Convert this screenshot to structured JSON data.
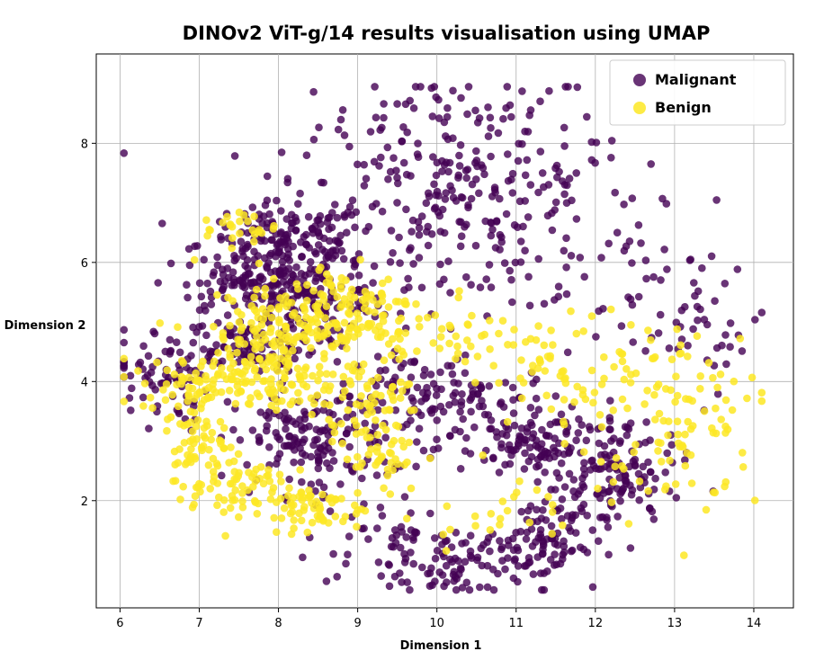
{
  "chart_data": {
    "type": "scatter",
    "title": "DINOv2 ViT-g/14 results visualisation using UMAP",
    "xlabel": "Dimension 1",
    "ylabel": "Dimension 2",
    "xlim": [
      5.7,
      14.5
    ],
    "ylim": [
      0.2,
      9.5
    ],
    "xticks": [
      6,
      7,
      8,
      9,
      10,
      11,
      12,
      13,
      14
    ],
    "yticks": [
      2,
      4,
      6,
      8
    ],
    "grid": true,
    "legend_position": "top-right",
    "series": [
      {
        "name": "Malignant",
        "color": "#440154",
        "opacity": 0.8,
        "clusters": [
          {
            "cx": 10.3,
            "cy": 8.3,
            "sx": 0.9,
            "sy": 0.45,
            "n": 80
          },
          {
            "cx": 10.2,
            "cy": 7.2,
            "sx": 1.2,
            "sy": 0.55,
            "n": 150
          },
          {
            "cx": 10.6,
            "cy": 6.2,
            "sx": 1.1,
            "sy": 0.5,
            "n": 90
          },
          {
            "cx": 8.1,
            "cy": 6.3,
            "sx": 0.55,
            "sy": 0.35,
            "n": 170
          },
          {
            "cx": 8.3,
            "cy": 5.4,
            "sx": 0.55,
            "sy": 0.3,
            "n": 150
          },
          {
            "cx": 7.5,
            "cy": 5.6,
            "sx": 0.35,
            "sy": 0.25,
            "n": 50
          },
          {
            "cx": 7.6,
            "cy": 4.6,
            "sx": 0.45,
            "sy": 0.22,
            "n": 90
          },
          {
            "cx": 6.5,
            "cy": 4.1,
            "sx": 0.3,
            "sy": 0.4,
            "n": 70
          },
          {
            "cx": 8.4,
            "cy": 3.0,
            "sx": 0.5,
            "sy": 0.45,
            "n": 150
          },
          {
            "cx": 9.6,
            "cy": 3.7,
            "sx": 0.5,
            "sy": 0.4,
            "n": 60
          },
          {
            "cx": 10.5,
            "cy": 3.6,
            "sx": 0.6,
            "sy": 0.35,
            "n": 90
          },
          {
            "cx": 11.5,
            "cy": 2.9,
            "sx": 0.6,
            "sy": 0.3,
            "n": 130
          },
          {
            "cx": 12.3,
            "cy": 2.3,
            "sx": 0.4,
            "sy": 0.35,
            "n": 60
          },
          {
            "cx": 10.2,
            "cy": 1.0,
            "sx": 0.6,
            "sy": 0.3,
            "n": 100
          },
          {
            "cx": 11.3,
            "cy": 1.3,
            "sx": 0.4,
            "sy": 0.35,
            "n": 80
          },
          {
            "cx": 11.9,
            "cy": 2.0,
            "sx": 0.3,
            "sy": 0.3,
            "n": 40
          },
          {
            "cx": 12.8,
            "cy": 5.2,
            "sx": 0.7,
            "sy": 0.5,
            "n": 45
          },
          {
            "cx": 13.6,
            "cy": 4.6,
            "sx": 0.4,
            "sy": 0.5,
            "n": 14
          },
          {
            "cx": 9.3,
            "cy": 1.5,
            "sx": 0.3,
            "sy": 0.3,
            "n": 25
          }
        ]
      },
      {
        "name": "Benign",
        "color": "#fde725",
        "opacity": 0.85,
        "clusters": [
          {
            "cx": 7.5,
            "cy": 6.6,
            "sx": 0.25,
            "sy": 0.15,
            "n": 25
          },
          {
            "cx": 8.8,
            "cy": 5.2,
            "sx": 0.55,
            "sy": 0.4,
            "n": 140
          },
          {
            "cx": 8.0,
            "cy": 4.8,
            "sx": 0.55,
            "sy": 0.3,
            "n": 100
          },
          {
            "cx": 7.7,
            "cy": 4.0,
            "sx": 0.7,
            "sy": 0.25,
            "n": 150
          },
          {
            "cx": 6.9,
            "cy": 3.2,
            "sx": 0.2,
            "sy": 0.5,
            "n": 70
          },
          {
            "cx": 7.4,
            "cy": 2.3,
            "sx": 0.35,
            "sy": 0.3,
            "n": 60
          },
          {
            "cx": 8.3,
            "cy": 1.9,
            "sx": 0.4,
            "sy": 0.2,
            "n": 70
          },
          {
            "cx": 9.2,
            "cy": 3.2,
            "sx": 0.3,
            "sy": 0.6,
            "n": 90
          },
          {
            "cx": 10.2,
            "cy": 4.9,
            "sx": 0.45,
            "sy": 0.4,
            "n": 40
          },
          {
            "cx": 11.8,
            "cy": 4.2,
            "sx": 0.6,
            "sy": 0.45,
            "n": 70
          },
          {
            "cx": 13.3,
            "cy": 3.8,
            "sx": 0.5,
            "sy": 0.5,
            "n": 55
          },
          {
            "cx": 12.8,
            "cy": 2.6,
            "sx": 0.5,
            "sy": 0.5,
            "n": 40
          },
          {
            "cx": 10.8,
            "cy": 1.9,
            "sx": 0.5,
            "sy": 0.35,
            "n": 25
          }
        ]
      }
    ]
  }
}
